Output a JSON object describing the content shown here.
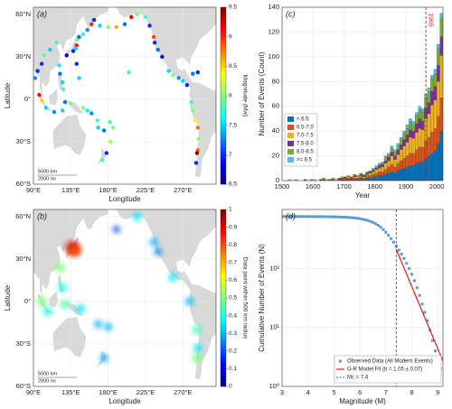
{
  "chart_data": [
    {
      "type": "scatter",
      "panel_label": "(a)",
      "xlabel": "Longitude",
      "ylabel": "Latitude",
      "xlim": [
        90,
        310
      ],
      "ylim": [
        -60,
        65
      ],
      "xticks": [
        {
          "value": 90,
          "label": "90°E"
        },
        {
          "value": 135,
          "label": "135°E"
        },
        {
          "value": 180,
          "label": "180°E"
        },
        {
          "value": 225,
          "label": "225°E"
        },
        {
          "value": 270,
          "label": "270°E"
        }
      ],
      "yticks": [
        {
          "value": -60,
          "label": "60°S"
        },
        {
          "value": -30,
          "label": "30°S"
        },
        {
          "value": 0,
          "label": "0°"
        },
        {
          "value": 30,
          "label": "30°N"
        },
        {
          "value": 60,
          "label": "60°N"
        }
      ],
      "grid": true,
      "x": [
        142,
        141,
        143,
        138,
        145,
        130,
        150,
        155,
        160,
        163,
        170,
        180,
        190,
        200,
        208,
        215,
        225,
        230,
        235,
        236,
        240,
        245,
        253,
        258,
        265,
        270,
        275,
        282,
        288,
        280,
        282,
        285,
        288,
        289,
        288,
        287,
        286,
        125,
        126,
        122,
        121,
        97,
        100,
        105,
        115,
        125,
        135,
        128,
        95,
        92,
        150,
        155,
        160,
        167,
        168,
        175,
        182,
        186,
        183,
        178,
        173,
        103,
        100,
        118,
        110,
        145,
        142,
        205
      ],
      "y": [
        38,
        36,
        42,
        34,
        44,
        31,
        46,
        49,
        53,
        56,
        52,
        51,
        51,
        53,
        58,
        60,
        58,
        52,
        44,
        40,
        35,
        30,
        20,
        17,
        15,
        13,
        10,
        18,
        19,
        -2,
        -8,
        -15,
        -20,
        -28,
        -36,
        -38,
        -45,
        12,
        7,
        18,
        24,
        3,
        -1,
        -6,
        -9,
        -8,
        -3,
        -2,
        20,
        15,
        -6,
        -8,
        -10,
        -15,
        -20,
        -22,
        -16,
        -20,
        -30,
        -38,
        -43,
        31,
        25,
        40,
        35,
        15,
        25,
        19
      ],
      "values": [
        9.1,
        7.5,
        8.0,
        7.0,
        7.2,
        6.8,
        7.8,
        7.3,
        9.0,
        7.0,
        7.5,
        8.0,
        8.6,
        7.2,
        9.2,
        8.0,
        7.8,
        7.0,
        8.9,
        7.0,
        7.2,
        6.8,
        7.5,
        8.0,
        7.3,
        7.5,
        7.0,
        7.2,
        7.0,
        7.8,
        8.0,
        8.4,
        8.8,
        8.0,
        8.8,
        9.5,
        7.0,
        7.5,
        7.8,
        7.2,
        7.6,
        9.1,
        8.5,
        7.5,
        7.3,
        7.5,
        8.0,
        7.2,
        7.0,
        7.3,
        8.0,
        7.6,
        7.3,
        7.8,
        7.5,
        7.2,
        7.8,
        8.0,
        8.1,
        7.0,
        7.8,
        7.9,
        7.0,
        7.8,
        7.5,
        7.5,
        7.0,
        7.7
      ],
      "colorbar": {
        "label": "Magnitude (Mw)",
        "lim": [
          6.5,
          9.5
        ],
        "ticks": [
          6.5,
          7,
          7.5,
          8,
          8.5,
          9,
          9.5
        ]
      },
      "scale_bar": [
        "5000 km",
        "2000 mi"
      ]
    },
    {
      "type": "density",
      "panel_label": "(b)",
      "xlabel": "Longitude",
      "ylabel": "Latitude",
      "xlim": [
        90,
        310
      ],
      "ylim": [
        -60,
        65
      ],
      "xticks": [
        {
          "value": 90,
          "label": "90°E"
        },
        {
          "value": 135,
          "label": "135°E"
        },
        {
          "value": 180,
          "label": "180°E"
        },
        {
          "value": 225,
          "label": "225°E"
        },
        {
          "value": 270,
          "label": "270°E"
        }
      ],
      "yticks": [
        {
          "value": -60,
          "label": "60°S"
        },
        {
          "value": -30,
          "label": "30°S"
        },
        {
          "value": 0,
          "label": "0°"
        },
        {
          "value": 30,
          "label": "30°N"
        },
        {
          "value": 60,
          "label": "60°N"
        }
      ],
      "grid": true,
      "x": [
        137,
        140,
        122,
        125,
        128,
        100,
        107,
        147,
        168,
        180,
        175,
        215,
        190,
        235,
        240,
        258,
        278,
        287,
        288,
        287
      ],
      "y": [
        38,
        36,
        24,
        10,
        -2,
        0,
        -7,
        -5,
        -16,
        -18,
        -40,
        60,
        51,
        42,
        35,
        17,
        0,
        -20,
        -33,
        -40
      ],
      "values": [
        0.95,
        0.8,
        0.5,
        0.4,
        0.45,
        0.5,
        0.4,
        0.35,
        0.3,
        0.3,
        0.3,
        0.35,
        0.2,
        0.3,
        0.25,
        0.35,
        0.3,
        0.45,
        0.35,
        0.5
      ],
      "colorbar": {
        "label": "Data point within 500 km radius",
        "lim": [
          0,
          1
        ],
        "ticks": [
          0,
          0.1,
          0.2,
          0.3,
          0.4,
          0.5,
          0.6,
          0.7,
          0.8,
          0.9,
          1
        ]
      },
      "scale_bar": [
        "5000 km",
        "2000 mi"
      ]
    },
    {
      "type": "histogram",
      "panel_label": "(c)",
      "xlabel": "Year",
      "ylabel": "Number of Events (Count)",
      "xlim": [
        1500,
        2020
      ],
      "ylim": [
        0,
        140
      ],
      "xticks": [
        1500,
        1600,
        1700,
        1800,
        1900,
        2000
      ],
      "yticks": [
        0,
        20,
        40,
        60,
        80,
        100,
        120,
        140
      ],
      "grid": true,
      "bins": [
        1500,
        1510,
        1520,
        1530,
        1540,
        1550,
        1560,
        1570,
        1580,
        1590,
        1600,
        1610,
        1620,
        1630,
        1640,
        1650,
        1660,
        1670,
        1680,
        1690,
        1700,
        1710,
        1720,
        1730,
        1740,
        1750,
        1760,
        1770,
        1780,
        1790,
        1800,
        1810,
        1820,
        1830,
        1840,
        1850,
        1860,
        1870,
        1880,
        1890,
        1900,
        1910,
        1920,
        1930,
        1940,
        1950,
        1960,
        1970,
        1980,
        1990,
        2000,
        2010,
        2020
      ],
      "series": [
        {
          "name": "< 6.5",
          "color": "#0072bd",
          "values": [
            0,
            0,
            0,
            0,
            0,
            0,
            0,
            0,
            0,
            0,
            0,
            0,
            0,
            0,
            0,
            0,
            0,
            0,
            0,
            1,
            1,
            1,
            1,
            1,
            1,
            2,
            1,
            2,
            2,
            3,
            3,
            4,
            4,
            5,
            6,
            7,
            6,
            8,
            9,
            10,
            11,
            12,
            12,
            14,
            15,
            15,
            18,
            20,
            22,
            24,
            30,
            40
          ]
        },
        {
          "name": "6.5-7.0",
          "color": "#d95319",
          "values": [
            0,
            0,
            0,
            0,
            0,
            0,
            0,
            0,
            0,
            0,
            0,
            0,
            0,
            1,
            0,
            0,
            1,
            0,
            1,
            1,
            1,
            1,
            1,
            1,
            1,
            1,
            1,
            2,
            2,
            2,
            3,
            3,
            3,
            4,
            5,
            6,
            5,
            6,
            7,
            8,
            9,
            10,
            10,
            11,
            12,
            12,
            14,
            15,
            17,
            18,
            22,
            27
          ]
        },
        {
          "name": "7.0-7.5",
          "color": "#edb120",
          "values": [
            0,
            0,
            1,
            0,
            1,
            0,
            0,
            0,
            0,
            0,
            1,
            0,
            0,
            0,
            1,
            0,
            0,
            1,
            0,
            0,
            0,
            1,
            0,
            1,
            1,
            1,
            1,
            1,
            2,
            2,
            3,
            3,
            4,
            5,
            5,
            7,
            6,
            7,
            9,
            10,
            11,
            13,
            12,
            14,
            15,
            14,
            18,
            19,
            22,
            23,
            28,
            34
          ]
        },
        {
          "name": "7.5-8.0",
          "color": "#7e2f8e",
          "values": [
            0,
            0,
            0,
            0,
            0,
            0,
            0,
            1,
            0,
            0,
            0,
            0,
            1,
            0,
            0,
            1,
            0,
            0,
            1,
            0,
            1,
            0,
            1,
            1,
            0,
            1,
            1,
            1,
            1,
            1,
            1,
            2,
            2,
            2,
            3,
            3,
            3,
            4,
            4,
            5,
            6,
            6,
            6,
            7,
            8,
            7,
            9,
            9,
            11,
            11,
            13,
            15
          ]
        },
        {
          "name": "8.0-8.5",
          "color": "#77ac30",
          "values": [
            0,
            0,
            0,
            0,
            0,
            0,
            0,
            0,
            0,
            1,
            0,
            0,
            0,
            1,
            0,
            0,
            1,
            0,
            0,
            1,
            0,
            1,
            0,
            1,
            1,
            1,
            1,
            1,
            1,
            1,
            1,
            1,
            1,
            3,
            2,
            3,
            3,
            3,
            4,
            5,
            5,
            6,
            5,
            6,
            7,
            7,
            8,
            9,
            10,
            10,
            13,
            15
          ]
        },
        {
          "name": ">= 8.5",
          "color": "#4dbeee",
          "values": [
            0,
            0,
            0,
            0,
            0,
            0,
            0,
            0,
            0,
            0,
            0,
            0,
            0,
            0,
            0,
            0,
            0,
            0,
            0,
            0,
            0,
            0,
            0,
            0,
            0,
            0,
            0,
            0,
            0,
            1,
            1,
            1,
            1,
            1,
            1,
            2,
            2,
            2,
            2,
            2,
            3,
            3,
            3,
            3,
            3,
            3,
            3,
            3,
            3,
            4,
            4,
            4
          ]
        }
      ],
      "vline": {
        "label": "1965",
        "value": 1965,
        "color": "#e41a1c"
      }
    },
    {
      "type": "line",
      "panel_label": "(d)",
      "xlabel": "Magnitude (M)",
      "ylabel": "Cumulative Number of Events (N)",
      "xlim": [
        3,
        9.2
      ],
      "ylim": [
        1,
        1000
      ],
      "log_y": true,
      "xticks": [
        3,
        4,
        5,
        6,
        7,
        8,
        9
      ],
      "yticks": [
        {
          "value": 1,
          "label": "10⁰"
        },
        {
          "value": 10,
          "label": "10¹"
        },
        {
          "value": 100,
          "label": "10²"
        }
      ],
      "grid": true,
      "series": [
        {
          "name": "Observed Data (All Modern Events)",
          "color": "#5b9bd5",
          "style": "marker",
          "x": [
            3.0,
            3.1,
            3.2,
            3.3,
            3.4,
            3.5,
            3.6,
            3.7,
            3.8,
            3.9,
            4.0,
            4.1,
            4.2,
            4.3,
            4.4,
            4.5,
            4.6,
            4.7,
            4.8,
            4.9,
            5.0,
            5.1,
            5.2,
            5.3,
            5.4,
            5.5,
            5.6,
            5.7,
            5.8,
            5.9,
            6.0,
            6.1,
            6.2,
            6.3,
            6.4,
            6.5,
            6.6,
            6.7,
            6.8,
            6.9,
            7.0,
            7.1,
            7.2,
            7.3,
            7.4,
            7.5,
            7.6,
            7.7,
            7.8,
            7.9,
            8.0,
            8.1,
            8.2,
            8.3,
            8.4,
            8.5,
            8.6,
            8.7,
            8.8,
            8.9,
            9.0,
            9.1
          ],
          "values": [
            760,
            760,
            760,
            760,
            760,
            760,
            759,
            759,
            759,
            759,
            758,
            758,
            757,
            757,
            756,
            756,
            755,
            754,
            753,
            752,
            750,
            748,
            746,
            743,
            740,
            736,
            731,
            725,
            718,
            709,
            698,
            685,
            670,
            652,
            630,
            605,
            575,
            540,
            500,
            455,
            410,
            365,
            320,
            280,
            240,
            205,
            175,
            148,
            122,
            100,
            80,
            62,
            47,
            35,
            25,
            18,
            13,
            9,
            6,
            4,
            2,
            2
          ]
        },
        {
          "name": "G-R Model Fit (b = 1.05 ± 0.07)",
          "color": "#e41a1c",
          "style": "line",
          "x": [
            7.4,
            9.2
          ],
          "values": [
            210,
            2.7
          ]
        }
      ],
      "vline": {
        "label": "Mc = 7.4",
        "value": 7.4,
        "color": "#555555"
      }
    }
  ]
}
